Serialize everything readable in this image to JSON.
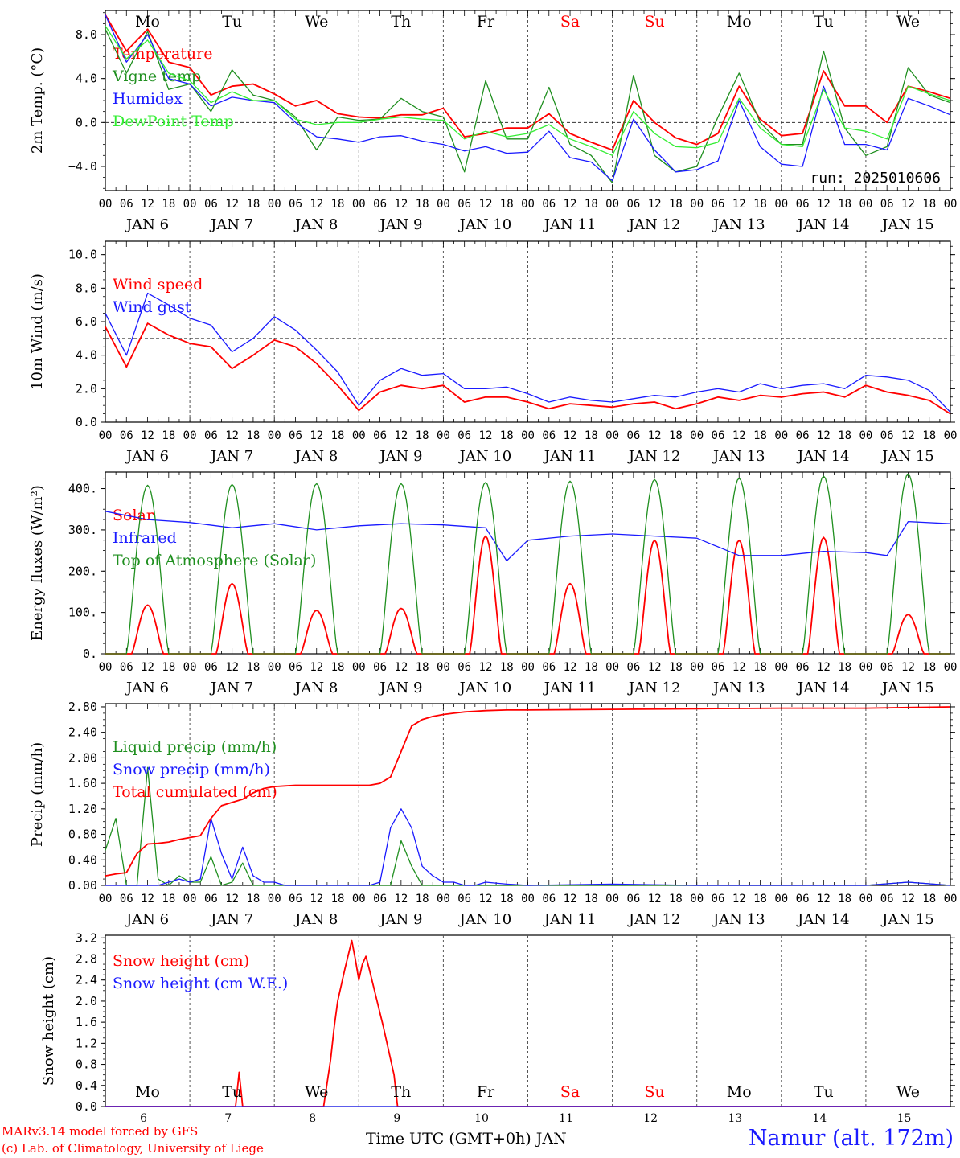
{
  "footer": {
    "credit_line1": "MARv3.14 model forced by GFS",
    "credit_line2": "(c) Lab. of Climatology, University of Liege",
    "x_axis_title": "Time UTC (GMT+0h) JAN",
    "station": "Namur (alt. 172m)"
  },
  "colors": {
    "red": "#ff0000",
    "green": "#1f8f1f",
    "blue": "#1a1aff",
    "lightgreen": "#33ee33",
    "weekend": "#ff0000"
  },
  "chart_data": [
    {
      "type": "line",
      "ylabel": "2m Temp. (°C)",
      "ylim": [
        -6.2,
        10.2
      ],
      "yticks": [
        -4.0,
        0.0,
        4.0,
        8.0
      ],
      "ytick_labels": [
        "-4.0",
        "0.0",
        "4.0",
        "8.0"
      ],
      "reference_line": 0.0,
      "annotation": "run: 2025010606",
      "day_names_top": [
        "Mo",
        "Tu",
        "We",
        "Th",
        "Fr",
        "Sa",
        "Su",
        "Mo",
        "Tu",
        "We"
      ],
      "weekend_days": [
        "Sa",
        "Su"
      ],
      "x_hours": [
        0,
        6,
        12,
        18,
        24,
        30,
        36,
        42,
        48,
        54,
        60,
        66,
        72,
        78,
        84,
        90,
        96,
        102,
        108,
        114,
        120,
        126,
        132,
        138,
        144,
        150,
        156,
        162,
        168,
        174,
        180,
        186,
        192,
        198,
        204,
        210,
        216,
        222,
        228,
        234,
        240
      ],
      "series": [
        {
          "name": "Temperature",
          "color": "red",
          "values": [
            9.8,
            6.5,
            8.5,
            5.5,
            5.0,
            2.5,
            3.3,
            3.5,
            2.6,
            1.5,
            2.0,
            0.8,
            0.5,
            0.4,
            0.7,
            0.7,
            1.3,
            -1.3,
            -1.0,
            -0.5,
            -0.5,
            0.8,
            -1.0,
            -1.8,
            -2.5,
            2.0,
            0.0,
            -1.4,
            -2.0,
            -1.0,
            3.3,
            0.3,
            -1.2,
            -1.0,
            4.7,
            1.5,
            1.5,
            0.0,
            3.3,
            2.8,
            2.2
          ]
        },
        {
          "name": "Vigne temp",
          "color": "green",
          "values": [
            8.5,
            4.5,
            8.3,
            3.0,
            3.5,
            1.0,
            4.8,
            2.5,
            2.0,
            0.5,
            -2.5,
            0.5,
            0.2,
            0.3,
            2.2,
            1.0,
            0.5,
            -4.5,
            3.8,
            -1.5,
            -1.5,
            3.2,
            -2.0,
            -3.0,
            -5.5,
            4.3,
            -3.0,
            -4.5,
            -4.0,
            0.5,
            4.5,
            0.0,
            -2.0,
            -2.0,
            6.5,
            -0.5,
            -3.0,
            -2.2,
            5.0,
            2.5,
            1.8
          ]
        },
        {
          "name": "Humidex",
          "color": "blue",
          "values": [
            9.8,
            5.5,
            8.0,
            4.0,
            3.5,
            1.5,
            2.3,
            2.0,
            1.8,
            0.0,
            -1.3,
            -1.5,
            -1.8,
            -1.3,
            -1.2,
            -1.7,
            -2.0,
            -2.6,
            -2.2,
            -2.8,
            -2.7,
            -0.8,
            -3.2,
            -3.6,
            -5.3,
            0.3,
            -2.5,
            -4.5,
            -4.3,
            -3.5,
            2.0,
            -2.2,
            -3.8,
            -4.0,
            3.3,
            -2.0,
            -2.0,
            -2.5,
            2.2,
            1.5,
            0.7
          ]
        },
        {
          "name": "DewPoint Temp",
          "color": "lightgreen",
          "values": [
            8.8,
            5.8,
            7.5,
            4.5,
            3.8,
            1.8,
            2.8,
            2.0,
            2.0,
            0.3,
            -0.2,
            0.0,
            0.0,
            0.3,
            0.5,
            0.3,
            0.2,
            -1.5,
            -0.8,
            -1.3,
            -1.0,
            -0.2,
            -1.5,
            -2.2,
            -3.0,
            1.0,
            -1.0,
            -2.2,
            -2.3,
            -1.8,
            2.2,
            -0.5,
            -2.0,
            -2.2,
            3.0,
            -0.5,
            -0.8,
            -1.5,
            3.3,
            2.6,
            2.0
          ]
        }
      ]
    },
    {
      "type": "line",
      "ylabel": "10m Wind (m/s)",
      "ylim": [
        0,
        10.8
      ],
      "yticks": [
        0,
        2,
        4,
        6,
        8,
        10
      ],
      "ytick_labels": [
        "0.0",
        "2.0",
        "4.0",
        "6.0",
        "8.0",
        "10.0"
      ],
      "reference_line": 5.0,
      "x_hours": [
        0,
        6,
        12,
        18,
        24,
        30,
        36,
        42,
        48,
        54,
        60,
        66,
        72,
        78,
        84,
        90,
        96,
        102,
        108,
        114,
        120,
        126,
        132,
        138,
        144,
        150,
        156,
        162,
        168,
        174,
        180,
        186,
        192,
        198,
        204,
        210,
        216,
        222,
        228,
        234,
        240
      ],
      "series": [
        {
          "name": "Wind speed",
          "color": "red",
          "values": [
            5.7,
            3.3,
            5.9,
            5.2,
            4.7,
            4.5,
            3.2,
            4.0,
            4.9,
            4.5,
            3.5,
            2.2,
            0.7,
            1.8,
            2.2,
            2.0,
            2.2,
            1.2,
            1.5,
            1.5,
            1.2,
            0.8,
            1.1,
            1.0,
            0.9,
            1.1,
            1.2,
            0.8,
            1.1,
            1.5,
            1.3,
            1.6,
            1.5,
            1.7,
            1.8,
            1.5,
            2.2,
            1.8,
            1.6,
            1.3,
            0.5
          ]
        },
        {
          "name": "Wind gust",
          "color": "blue",
          "values": [
            6.5,
            4.0,
            7.7,
            7.0,
            6.2,
            5.8,
            4.2,
            5.0,
            6.3,
            5.5,
            4.3,
            3.0,
            1.0,
            2.5,
            3.2,
            2.8,
            2.9,
            2.0,
            2.0,
            2.1,
            1.7,
            1.2,
            1.5,
            1.3,
            1.2,
            1.4,
            1.6,
            1.5,
            1.8,
            2.0,
            1.8,
            2.3,
            2.0,
            2.2,
            2.3,
            2.0,
            2.8,
            2.7,
            2.5,
            1.9,
            0.6
          ]
        }
      ]
    },
    {
      "type": "line",
      "ylabel": "Energy fluxes (W/m²)",
      "ylim": [
        0,
        440
      ],
      "yticks": [
        0,
        100,
        200,
        300,
        400
      ],
      "ytick_labels": [
        "0.",
        "100.",
        "200.",
        "300.",
        "400."
      ],
      "series": [
        {
          "name": "Solar",
          "color": "red",
          "daily_peaks": [
            118,
            170,
            105,
            110,
            285,
            170,
            275,
            275,
            282,
            95
          ]
        },
        {
          "name": "Infrared",
          "color": "blue",
          "x_hours": [
            0,
            12,
            24,
            36,
            48,
            60,
            72,
            84,
            96,
            108,
            114,
            120,
            132,
            144,
            156,
            168,
            180,
            192,
            204,
            216,
            222,
            228,
            240
          ],
          "values": [
            345,
            325,
            318,
            305,
            315,
            300,
            310,
            315,
            312,
            305,
            225,
            275,
            285,
            290,
            285,
            280,
            238,
            238,
            248,
            245,
            238,
            320,
            315
          ]
        },
        {
          "name": "Top of Atmosphere (Solar)",
          "color": "green",
          "daily_peaks": [
            408,
            410,
            412,
            412,
            415,
            418,
            422,
            425,
            430,
            435
          ]
        }
      ]
    },
    {
      "type": "line",
      "ylabel": "Precip (mm/h)",
      "ylim": [
        0,
        2.85
      ],
      "yticks": [
        0,
        0.4,
        0.8,
        1.2,
        1.6,
        2.0,
        2.4,
        2.8
      ],
      "ytick_labels": [
        "0.00",
        "0.40",
        "0.80",
        "1.20",
        "1.60",
        "2.00",
        "2.40",
        "2.80"
      ],
      "x_hours": [
        0,
        3,
        6,
        9,
        12,
        15,
        18,
        21,
        24,
        27,
        30,
        33,
        36,
        39,
        42,
        45,
        48,
        51,
        54,
        57,
        60,
        63,
        66,
        69,
        72,
        75,
        78,
        81,
        84,
        87,
        90,
        93,
        96,
        99,
        102,
        105,
        108,
        114,
        120,
        144,
        168,
        192,
        216,
        228,
        240
      ],
      "series": [
        {
          "name": "Liquid precip (mm/h)",
          "color": "green",
          "values": [
            0.55,
            1.05,
            0.0,
            0.0,
            1.85,
            0.1,
            0.0,
            0.15,
            0.05,
            0.05,
            0.45,
            0.0,
            0.05,
            0.35,
            0.0,
            0.0,
            0.0,
            0.0,
            0.0,
            0.0,
            0.0,
            0.0,
            0.0,
            0.0,
            0.0,
            0.0,
            0.0,
            0.0,
            0.7,
            0.3,
            0.0,
            0.0,
            0.0,
            0.0,
            0.0,
            0.0,
            0.0,
            0.0,
            0.0,
            0.0,
            0.0,
            0.0,
            0.0,
            0.05,
            0.0
          ]
        },
        {
          "name": "Snow precip (mm/h)",
          "color": "blue",
          "values": [
            0.0,
            0.0,
            0.0,
            0.0,
            0.0,
            0.0,
            0.05,
            0.1,
            0.05,
            0.1,
            1.05,
            0.5,
            0.1,
            0.6,
            0.15,
            0.05,
            0.05,
            0.0,
            0.0,
            0.0,
            0.0,
            0.0,
            0.0,
            0.0,
            0.0,
            0.0,
            0.05,
            0.9,
            1.2,
            0.9,
            0.3,
            0.15,
            0.05,
            0.05,
            0.0,
            0.0,
            0.05,
            0.02,
            0.0,
            0.02,
            0.0,
            0.0,
            0.0,
            0.05,
            0.0
          ]
        },
        {
          "name": "Total cumulated (cm)",
          "color": "red",
          "values": [
            0.15,
            0.18,
            0.2,
            0.5,
            0.65,
            0.66,
            0.68,
            0.72,
            0.75,
            0.78,
            1.05,
            1.25,
            1.3,
            1.35,
            1.45,
            1.52,
            1.55,
            1.56,
            1.57,
            1.57,
            1.57,
            1.57,
            1.57,
            1.57,
            1.57,
            1.57,
            1.6,
            1.7,
            2.1,
            2.5,
            2.6,
            2.65,
            2.68,
            2.7,
            2.72,
            2.73,
            2.74,
            2.75,
            2.75,
            2.76,
            2.77,
            2.78,
            2.78,
            2.79,
            2.8
          ]
        }
      ]
    },
    {
      "type": "line",
      "ylabel": "Snow height (cm)",
      "ylim": [
        0,
        3.25
      ],
      "yticks": [
        0,
        0.4,
        0.8,
        1.2,
        1.6,
        2.0,
        2.4,
        2.8,
        3.2
      ],
      "ytick_labels": [
        "0.0",
        "0.4",
        "0.8",
        "1.2",
        "1.6",
        "2.0",
        "2.4",
        "2.8",
        "3.2"
      ],
      "day_names_bottom": [
        "Mo",
        "Tu",
        "We",
        "Th",
        "Fr",
        "Sa",
        "Su",
        "Mo",
        "Tu",
        "We"
      ],
      "day_numbers": [
        "6",
        "7",
        "8",
        "9",
        "10",
        "11",
        "12",
        "13",
        "14",
        "15"
      ],
      "x_hours": [
        0,
        37,
        38,
        39,
        62,
        64,
        65,
        66,
        68,
        70,
        71,
        72,
        73,
        74,
        75,
        79,
        82,
        83,
        240
      ],
      "series": [
        {
          "name": "Snow height (cm)",
          "color": "red",
          "values": [
            0.0,
            0.0,
            0.65,
            0.0,
            0.0,
            0.9,
            1.5,
            2.0,
            2.6,
            3.15,
            2.8,
            2.4,
            2.7,
            2.85,
            2.6,
            1.5,
            0.6,
            0.0,
            0.0
          ]
        },
        {
          "name": "Snow height (cm W.E.)",
          "color": "blue",
          "values": [
            0,
            0,
            0,
            0,
            0,
            0,
            0,
            0,
            0,
            0,
            0,
            0,
            0,
            0,
            0,
            0,
            0,
            0,
            0
          ]
        }
      ]
    }
  ],
  "axis": {
    "hour_labels": [
      "00",
      "06",
      "12",
      "18"
    ],
    "day_labels": [
      "JAN  6",
      "JAN  7",
      "JAN  8",
      "JAN  9",
      "JAN 10",
      "JAN 11",
      "JAN 12",
      "JAN 13",
      "JAN 14",
      "JAN 15"
    ]
  }
}
